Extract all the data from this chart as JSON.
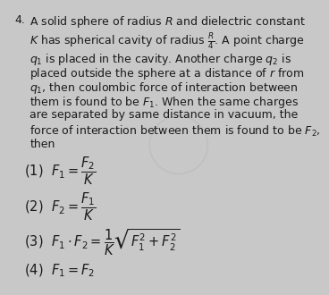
{
  "background_color": "#c8c8c8",
  "text_color": "#1a1a1a",
  "q_num": "4.",
  "line1": "A solid sphere of radius $R$ and dielectric constant",
  "line2_a": "$K$ has spherical cavity of radius ",
  "line2_frac": "$\\frac{R}{4}$",
  "line2_b": ". A point charge",
  "line3": "$q_1$ is placed in the cavity. Another charge $q_2$ is",
  "line4": "placed outside the sphere at a distance of $r$ from",
  "line5": "$q_1$, then coulombic force of interaction between",
  "line6": "them is found to be $F_1$. When the same charges",
  "line7": "are separated by same distance in vacuum, the",
  "line8": "force of interaction between them is found to be $F_2$,",
  "line9": "then",
  "opt1": "(1)  $F_1 = \\dfrac{F_2}{K}$",
  "opt2": "(2)  $F_2 = \\dfrac{F_1}{K}$",
  "opt3": "(3)  $F_1 \\cdot F_2 = \\dfrac{1}{K}\\sqrt{F_1^2 + F_2^2}$",
  "opt4": "(4)  $F_1 = F_2$",
  "body_fs": 9.0,
  "opt_fs": 10.5,
  "qnum_fs": 9.0
}
